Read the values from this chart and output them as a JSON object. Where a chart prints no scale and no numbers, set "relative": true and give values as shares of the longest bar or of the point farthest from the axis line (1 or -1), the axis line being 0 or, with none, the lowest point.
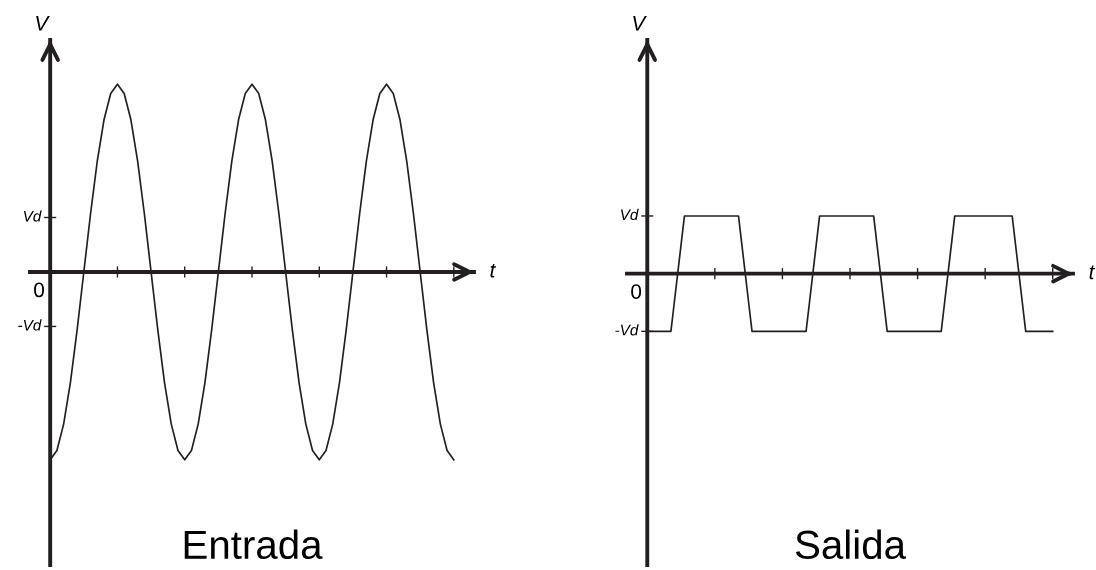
{
  "chart_data": [
    {
      "type": "line",
      "title": "Entrada",
      "xlabel": "t",
      "ylabel": "V",
      "color": "#231f20",
      "grid": false,
      "marker": "none",
      "line_style": "solid",
      "relative": true,
      "categories": [
        null,
        null,
        null,
        null,
        null,
        null,
        null,
        null,
        null,
        null,
        null,
        null,
        null,
        null,
        null,
        null,
        null,
        null,
        null,
        null,
        null,
        null,
        null,
        null,
        null,
        null,
        null,
        null,
        null,
        null,
        null,
        null,
        null,
        null,
        null,
        null,
        null,
        null,
        null,
        null,
        null,
        null,
        null,
        null,
        null,
        null,
        null,
        null,
        null,
        null,
        null,
        null,
        null,
        null,
        null,
        null,
        null,
        null,
        null,
        null,
        null
      ],
      "values": [
        -1,
        -0.95,
        -0.81,
        -0.59,
        -0.31,
        0,
        0.31,
        0.59,
        0.81,
        0.95,
        1,
        0.95,
        0.81,
        0.59,
        0.31,
        0,
        -0.31,
        -0.59,
        -0.81,
        -0.95,
        -1,
        -0.95,
        -0.81,
        -0.59,
        -0.31,
        0,
        0.31,
        0.59,
        0.81,
        0.95,
        1,
        0.95,
        0.81,
        0.59,
        0.31,
        0,
        -0.31,
        -0.59,
        -0.81,
        -0.95,
        -1,
        -0.95,
        -0.81,
        -0.59,
        -0.31,
        0,
        0.31,
        0.59,
        0.81,
        0.95,
        1,
        0.95,
        0.81,
        0.59,
        0.31,
        0,
        -0.31,
        -0.59,
        -0.81,
        -0.95,
        -1
      ],
      "ref_lines": [
        {
          "axis": "y",
          "value": 0.29,
          "label": "Vd",
          "color": "#231f20"
        },
        {
          "axis": "y",
          "value": -0.29,
          "label": "-Vd",
          "color": "#231f20"
        }
      ],
      "annotations": [
        "0"
      ]
    },
    {
      "type": "line",
      "title": "Salida",
      "xlabel": "t",
      "ylabel": "V",
      "color": "#231f20",
      "grid": false,
      "marker": "none",
      "line_style": "solid",
      "relative": true,
      "categories": [
        null,
        null,
        null,
        null,
        null,
        null,
        null,
        null,
        null,
        null,
        null,
        null,
        null,
        null,
        null,
        null,
        null,
        null,
        null,
        null,
        null,
        null,
        null,
        null,
        null,
        null,
        null,
        null,
        null,
        null,
        null,
        null,
        null,
        null,
        null,
        null,
        null,
        null,
        null,
        null,
        null,
        null,
        null,
        null,
        null,
        null,
        null,
        null,
        null,
        null,
        null,
        null,
        null,
        null,
        null,
        null,
        null,
        null,
        null,
        null,
        null,
        null,
        null,
        null,
        null,
        null,
        null,
        null,
        null,
        null,
        null,
        null,
        null,
        null,
        null,
        null,
        null,
        null,
        null,
        null,
        null,
        null,
        null,
        null,
        null,
        null,
        null,
        null,
        null,
        null,
        null,
        null,
        null,
        null,
        null,
        null,
        null,
        null,
        null,
        null,
        null,
        null,
        null,
        null,
        null,
        null,
        null,
        null,
        null,
        null,
        null,
        null,
        null,
        null,
        null,
        null,
        null,
        null,
        null,
        null,
        null
      ],
      "values": [
        -1,
        -1,
        -1,
        -1,
        -1,
        -1,
        -1,
        -1,
        -0.5,
        0,
        0.5,
        1,
        1,
        1,
        1,
        1,
        1,
        1,
        1,
        1,
        1,
        1,
        1,
        1,
        1,
        1,
        1,
        1,
        0.5,
        0,
        -0.5,
        -1,
        -1,
        -1,
        -1,
        -1,
        -1,
        -1,
        -1,
        -1,
        -1,
        -1,
        -1,
        -1,
        -1,
        -1,
        -1,
        -1,
        -0.5,
        0,
        0.5,
        1,
        1,
        1,
        1,
        1,
        1,
        1,
        1,
        1,
        1,
        1,
        1,
        1,
        1,
        1,
        1,
        1,
        0.5,
        0,
        -0.5,
        -1,
        -1,
        -1,
        -1,
        -1,
        -1,
        -1,
        -1,
        -1,
        -1,
        -1,
        -1,
        -1,
        -1,
        -1,
        -1,
        -1,
        -0.5,
        0,
        0.5,
        1,
        1,
        1,
        1,
        1,
        1,
        1,
        1,
        1,
        1,
        1,
        1,
        1,
        1,
        1,
        1,
        1,
        1,
        0.5,
        0,
        -0.5,
        -1,
        -1,
        -1,
        -1,
        -1,
        -1,
        -1,
        -1,
        -1
      ],
      "ref_lines": [
        {
          "axis": "y",
          "value": 1,
          "label": "Vd",
          "color": "#231f20"
        },
        {
          "axis": "y",
          "value": -1,
          "label": "-Vd",
          "color": "#231f20"
        }
      ],
      "annotations": [
        "0"
      ]
    }
  ]
}
